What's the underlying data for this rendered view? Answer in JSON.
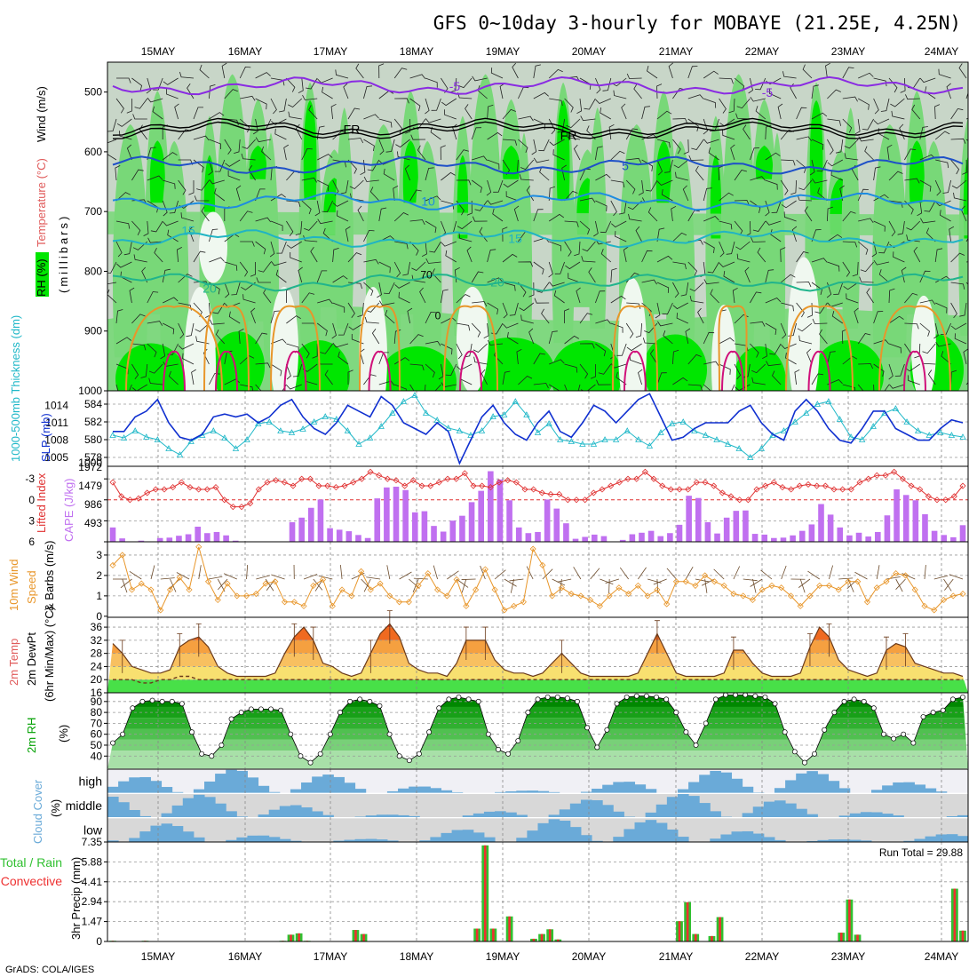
{
  "title": "GFS 0~10day 3-hourly for MOBAYE (21.25E, 4.25N)",
  "credit": "GrADS: COLA/IGES",
  "colors": {
    "rh_light": "#c8d6c8",
    "rh_mid": "#78d878",
    "rh_high": "#00e600",
    "rh_low": "#f0f8f0",
    "slp": "#1030d0",
    "thickness": "#20b8c8",
    "lifted": "#e03030",
    "cape": "#c070f0",
    "wind10": "#e8962a",
    "temp_hot": "#e83010",
    "temp_warm": "#f5a040",
    "temp_mild": "#f8e070",
    "temp_cool": "#48e048",
    "rh2m": "#00a000",
    "cloud": "#6aaad8",
    "cloud_bg": "#f0f0f5",
    "rain": "#ee3030",
    "total": "#30c030"
  },
  "chart_data": [
    {
      "type": "area",
      "panel": "profile",
      "xlabel": "",
      "ylabel": "(millibars)",
      "legend": [
        "RH (%)",
        "Temperature (°C)",
        "Wind (m/s)"
      ],
      "yticks": [
        500,
        600,
        700,
        800,
        900,
        1000
      ],
      "ylim": [
        1000,
        450
      ],
      "xticks": [
        "15MAY",
        "16MAY",
        "17MAY",
        "18MAY",
        "19MAY",
        "20MAY",
        "21MAY",
        "22MAY",
        "23MAY",
        "24MAY"
      ],
      "isotherms": [
        {
          "label": "-5",
          "pressure": 490,
          "color": "#8a2be2"
        },
        {
          "label": "FR",
          "pressure": 562,
          "color": "#000000"
        },
        {
          "label": "5",
          "pressure": 623,
          "color": "#1e50c8"
        },
        {
          "label": "10",
          "pressure": 683,
          "color": "#1e8ce0"
        },
        {
          "label": "15",
          "pressure": 745,
          "color": "#20b4c4"
        },
        {
          "label": "20",
          "pressure": 818,
          "color": "#20b48c"
        }
      ],
      "extra_labels": [
        "70",
        "25",
        "0"
      ]
    },
    {
      "type": "line",
      "panel": "thickness_slp",
      "ylabel": "1000-500mb Thickness (dm)",
      "ylabel2": "SLP (mb)",
      "yticks": [
        578,
        580,
        582,
        584
      ],
      "yticks2": [
        1005,
        1008,
        1011,
        1014
      ],
      "series": [
        {
          "name": "SLP",
          "axis": "right",
          "values": [
            1009.5,
            1009.5,
            1012.0,
            1013.0,
            1015.0,
            1011.0,
            1008.5,
            1008.0,
            1009.0,
            1012.0,
            1012.5,
            1012.0,
            1012.5,
            1011.0,
            1012.0,
            1014.0,
            1015.0,
            1012.0,
            1010.0,
            1009.0,
            1011.0,
            1014.0,
            1013.0,
            1012.0,
            1015.5,
            1014.0,
            1011.0,
            1010.0,
            1009.0,
            1011.0,
            1009.5,
            1004.0,
            1008.0,
            1012.0,
            1014.0,
            1011.0,
            1009.0,
            1008.0,
            1011.0,
            1013.0,
            1009.5,
            1008.5,
            1011.0,
            1014.0,
            1013.0,
            1011.0,
            1013.0,
            1015.0,
            1016.0,
            1012.0,
            1008.0,
            1008.5,
            1010.0,
            1011.0,
            1011.0,
            1011.0,
            1013.0,
            1014.0,
            1011.0,
            1009.0,
            1008.0,
            1013.0,
            1015.0,
            1013.0,
            1010.0,
            1008.0,
            1007.5,
            1010.0,
            1013.0,
            1013.0,
            1010.0,
            1009.0,
            1008.0,
            1008.0,
            1010.0,
            1011.5,
            1011.0
          ]
        },
        {
          "name": "Thickness",
          "axis": "left",
          "values": [
            580.5,
            580.2,
            581.0,
            580.3,
            580.0,
            579.0,
            578.3,
            579.8,
            580.5,
            581.0,
            580.2,
            579.0,
            580.0,
            581.8,
            582.0,
            581.0,
            580.8,
            581.2,
            582.0,
            582.6,
            582.3,
            581.0,
            579.5,
            580.2,
            581.5,
            583.0,
            584.3,
            585.0,
            583.0,
            582.2,
            581.3,
            581.0,
            580.5,
            581.0,
            582.6,
            582.8,
            584.3,
            582.8,
            580.8,
            581.8,
            580.0,
            579.8,
            579.5,
            579.5,
            580.0,
            580.0,
            581.0,
            580.0,
            579.3,
            580.8,
            581.8,
            582.0,
            581.0,
            580.5,
            580.0,
            579.5,
            579.0,
            578.0,
            579.0,
            580.5,
            581.0,
            582.0,
            583.0,
            584.0,
            584.3,
            582.3,
            580.3,
            580.0,
            581.5,
            583.0,
            583.5,
            582.0,
            581.0,
            580.5,
            580.8,
            580.5,
            580.3
          ]
        }
      ]
    },
    {
      "type": "bar",
      "panel": "lifted_cape",
      "ylabel": "Lifted Index",
      "ylabel2": "CAPE (J/kg)",
      "yticks": [
        -3,
        0,
        3,
        6
      ],
      "yticks2": [
        493,
        986,
        1479,
        1972
      ],
      "series": [
        {
          "name": "CAPE",
          "axis": "right",
          "values": [
            380,
            90,
            10,
            30,
            0,
            100,
            110,
            160,
            200,
            400,
            230,
            260,
            170,
            30,
            0,
            0,
            0,
            0,
            0,
            520,
            640,
            900,
            1120,
            360,
            320,
            280,
            180,
            100,
            1150,
            1440,
            1460,
            1370,
            780,
            810,
            420,
            270,
            560,
            690,
            1050,
            1350,
            1870,
            1650,
            1100,
            380,
            230,
            260,
            1120,
            880,
            490,
            80,
            130,
            190,
            150,
            0,
            50,
            200,
            240,
            290,
            150,
            230,
            450,
            1220,
            1160,
            520,
            220,
            640,
            820,
            830,
            210,
            190,
            100,
            110,
            170,
            290,
            460,
            1000,
            720,
            380,
            170,
            240,
            140,
            260,
            700,
            1390,
            1240,
            1100,
            730,
            290,
            180,
            120,
            440
          ]
        },
        {
          "name": "Lifted Index",
          "axis": "left",
          "values": [
            -2.5,
            -0.5,
            0.0,
            -0.2,
            -1.0,
            -1.5,
            -1.5,
            -1.8,
            -2.5,
            -1.8,
            -1.5,
            -1.5,
            -1.8,
            0.0,
            1.0,
            1.0,
            0.5,
            -1.5,
            -2.5,
            -2.8,
            -2.5,
            -2.0,
            -3.0,
            -3.0,
            -2.0,
            -2.0,
            -1.8,
            -2.0,
            -2.5,
            -3.0,
            -4.0,
            -3.5,
            -3.0,
            -2.8,
            -2.0,
            -2.8,
            -2.0,
            -2.0,
            -2.5,
            -3.0,
            -3.0,
            -3.8,
            -2.0,
            -2.0,
            -1.8,
            -2.5,
            -2.8,
            -2.5,
            -1.5,
            -1.5,
            -1.0,
            -0.8,
            -0.8,
            0.0,
            0.0,
            0.0,
            -1.0,
            -1.5,
            -2.0,
            -2.5,
            -3.0,
            -3.0,
            -4.0,
            -3.0,
            -2.0,
            -1.5,
            -1.5,
            -1.5,
            -2.5,
            -2.5,
            -2.0,
            -1.0,
            -0.5,
            0.0,
            0.0,
            -1.5,
            -2.0,
            -2.5,
            -1.8,
            -1.5,
            -2.0,
            -2.2,
            -2.0,
            -2.0,
            -1.5,
            -1.5,
            -1.5,
            -2.5,
            -3.0,
            -3.5,
            -3.5,
            -4.0,
            -3.0,
            -2.0,
            -1.5,
            -0.5,
            0.0,
            0.0,
            -0.5,
            -2.0
          ]
        }
      ]
    },
    {
      "type": "line",
      "panel": "wind10m",
      "ylabel": "10m Wind Speed & Barbs (m/s)",
      "yticks": [
        0,
        1,
        2,
        3
      ],
      "series": [
        {
          "name": "10m Wind Speed",
          "values": [
            2.5,
            3.0,
            1.3,
            1.6,
            1.3,
            0.3,
            1.3,
            1.9,
            1.3,
            3.4,
            1.7,
            0.8,
            1.6,
            1.0,
            1.0,
            1.1,
            1.6,
            1.7,
            0.7,
            0.7,
            0.5,
            1.5,
            1.8,
            0.5,
            1.3,
            1.0,
            2.2,
            1.3,
            1.6,
            1.0,
            0.7,
            0.7,
            1.5,
            2.1,
            1.3,
            1.0,
            1.8,
            0.5,
            1.3,
            2.3,
            1.3,
            0.3,
            0.5,
            0.7,
            3.3,
            2.5,
            1.0,
            1.4,
            1.1,
            1.0,
            0.8,
            0.5,
            1.0,
            1.4,
            1.1,
            1.5,
            1.0,
            1.3,
            0.6,
            1.7,
            1.7,
            1.5,
            2.0,
            1.7,
            1.5,
            1.1,
            1.0,
            0.8,
            1.3,
            1.5,
            1.4,
            1.0,
            0.5,
            1.0,
            1.5,
            1.5,
            1.3,
            1.7,
            1.7,
            0.7,
            1.4,
            1.7,
            2.1,
            2.0,
            1.3,
            0.5,
            0.3,
            0.8,
            1.0,
            1.1
          ]
        }
      ]
    },
    {
      "type": "area",
      "panel": "temperature",
      "ylabel": "2m Temp 2m DewPt (6hr Min/Max) (°C)",
      "yticks": [
        16,
        20,
        24,
        28,
        32,
        36
      ],
      "series": [
        {
          "name": "2m Temp",
          "values": [
            31,
            28,
            24,
            23,
            22,
            22,
            23,
            30,
            32,
            33,
            30,
            24,
            22,
            21,
            21,
            21,
            21,
            22,
            28,
            33,
            36,
            32,
            25,
            24,
            22,
            21,
            22,
            28,
            34,
            37,
            33,
            25,
            23,
            22,
            22,
            21,
            25,
            32,
            32,
            32,
            26,
            23,
            22,
            22,
            21,
            22,
            25,
            28,
            25,
            22,
            21,
            21,
            21,
            21,
            21,
            22,
            28,
            34,
            28,
            22,
            21,
            21,
            21,
            21,
            22,
            29,
            29,
            25,
            22,
            21,
            21,
            21,
            22,
            30,
            36,
            33,
            26,
            23,
            22,
            21,
            22,
            29,
            31,
            30,
            25,
            24,
            23,
            22,
            22,
            21
          ]
        },
        {
          "name": "2m DewPt",
          "values": [
            20,
            20,
            20,
            19,
            19,
            20,
            20,
            21,
            21,
            20,
            20,
            20,
            20,
            20,
            20,
            20,
            20,
            20,
            20,
            20,
            20,
            20,
            20,
            20,
            20,
            20,
            20,
            20,
            20,
            20,
            20,
            20,
            20,
            20,
            20,
            20,
            20,
            20,
            20,
            20,
            20,
            20,
            20,
            20,
            20,
            20,
            20,
            20,
            20,
            20,
            20,
            20,
            20,
            20,
            20,
            20,
            20,
            20,
            20,
            20,
            20,
            20,
            20,
            20,
            20,
            20,
            20,
            20,
            20,
            20,
            20,
            20,
            20,
            20,
            20,
            20,
            20,
            20,
            20,
            20,
            20,
            20,
            20,
            20,
            20,
            20,
            20,
            20,
            20,
            20
          ]
        }
      ]
    },
    {
      "type": "area",
      "panel": "rh2m",
      "ylabel": "2m RH (%)",
      "yticks": [
        40,
        50,
        60,
        70,
        80,
        90
      ],
      "series": [
        {
          "name": "2m RH",
          "values": [
            52,
            60,
            84,
            90,
            91,
            90,
            90,
            88,
            62,
            42,
            40,
            50,
            74,
            80,
            83,
            83,
            83,
            82,
            60,
            40,
            34,
            42,
            60,
            80,
            90,
            92,
            90,
            86,
            60,
            40,
            36,
            42,
            62,
            84,
            92,
            94,
            92,
            90,
            60,
            46,
            42,
            54,
            80,
            92,
            94,
            94,
            93,
            90,
            66,
            48,
            64,
            88,
            94,
            95,
            95,
            94,
            92,
            80,
            62,
            50,
            70,
            92,
            96,
            96,
            96,
            95,
            94,
            88,
            62,
            44,
            34,
            42,
            64,
            80,
            90,
            92,
            90,
            84,
            60,
            56,
            60,
            52,
            76,
            80,
            82,
            92,
            94
          ]
        }
      ]
    },
    {
      "type": "heatmap",
      "panel": "cloud_cover",
      "ylabel": "Cloud Cover (%)",
      "rows": [
        "high",
        "middle",
        "low"
      ]
    },
    {
      "type": "bar",
      "panel": "precip",
      "ylabel": "3hr Precip (mm)",
      "legend": [
        "Total / Rain",
        "Convective"
      ],
      "yticks": [
        0,
        1.47,
        2.94,
        4.41,
        5.88,
        7.35
      ],
      "annotation": "Run Total = 29.88",
      "series": [
        {
          "name": "Total",
          "values": [
            0.05,
            0,
            0,
            0.02,
            0.05,
            0,
            0,
            0,
            0,
            0,
            0,
            0,
            0,
            0,
            0,
            0,
            0,
            0,
            0,
            0,
            0,
            0.05,
            0.5,
            0.6,
            0.05,
            0,
            0,
            0,
            0,
            0,
            0.85,
            0.55,
            0,
            0,
            0,
            0,
            0,
            0,
            0,
            0,
            0,
            0,
            0,
            0,
            0,
            0.95,
            7.1,
            0.95,
            0,
            1.85,
            0,
            0,
            0.2,
            0.55,
            0.9,
            0.15,
            0,
            0,
            0,
            0,
            0,
            0,
            0,
            0,
            0,
            0,
            0,
            0,
            0,
            0,
            1.5,
            2.9,
            0.55,
            0,
            0.4,
            1.8,
            0,
            0,
            0,
            0,
            0,
            0,
            0,
            0,
            0,
            0,
            0,
            0,
            0,
            0,
            0.65,
            3.1,
            0.5,
            0,
            0,
            0,
            0,
            0,
            0,
            0,
            0,
            0,
            0,
            0,
            3.9,
            0.8
          ]
        }
      ]
    }
  ]
}
